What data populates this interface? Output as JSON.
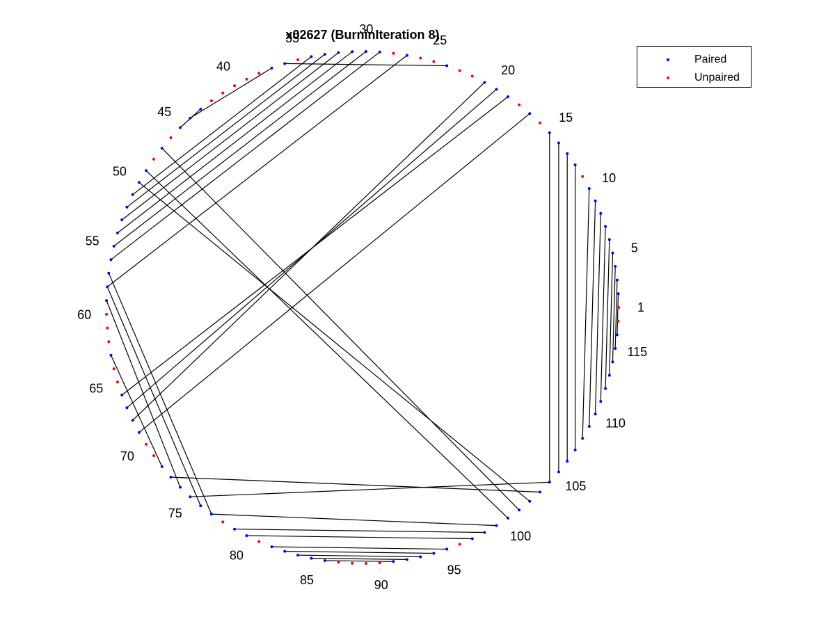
{
  "chart_data": {
    "type": "arc-diagram-circular",
    "title": "x02627 (BurninIteration 8)",
    "n_positions": 117,
    "tick_labels": [
      "1",
      "5",
      "10",
      "15",
      "20",
      "25",
      "30",
      "35",
      "40",
      "45",
      "50",
      "55",
      "60",
      "65",
      "70",
      "75",
      "80",
      "85",
      "90",
      "95",
      "100",
      "105",
      "110",
      "115"
    ],
    "tick_positions": [
      1,
      5,
      10,
      15,
      20,
      25,
      30,
      35,
      40,
      45,
      50,
      55,
      60,
      65,
      70,
      75,
      80,
      85,
      90,
      95,
      100,
      105,
      110,
      115
    ],
    "legend": [
      {
        "name": "Paired",
        "color": "#0000ff"
      },
      {
        "name": "Unpaired",
        "color": "#ff0000"
      }
    ],
    "pairs": [
      [
        2,
        116
      ],
      [
        3,
        115
      ],
      [
        4,
        114
      ],
      [
        5,
        113
      ],
      [
        6,
        112
      ],
      [
        7,
        111
      ],
      [
        8,
        110
      ],
      [
        9,
        109
      ],
      [
        10,
        108
      ],
      [
        12,
        107
      ],
      [
        13,
        106
      ],
      [
        14,
        105
      ],
      [
        15,
        104
      ],
      [
        17,
        69
      ],
      [
        19,
        66
      ],
      [
        20,
        67
      ],
      [
        21,
        68
      ],
      [
        24,
        36
      ],
      [
        27,
        58
      ],
      [
        29,
        56
      ],
      [
        30,
        55
      ],
      [
        31,
        54
      ],
      [
        32,
        53
      ],
      [
        33,
        52
      ],
      [
        34,
        51
      ],
      [
        37,
        44
      ],
      [
        43,
        45
      ],
      [
        47,
        101
      ],
      [
        49,
        100
      ],
      [
        50,
        102
      ],
      [
        63,
        72
      ],
      [
        73,
        103
      ],
      [
        57,
        77
      ],
      [
        58,
        76
      ],
      [
        59,
        74
      ],
      [
        75,
        104
      ],
      [
        77,
        99
      ],
      [
        79,
        98
      ],
      [
        80,
        97
      ],
      [
        82,
        95
      ],
      [
        83,
        94
      ],
      [
        84,
        93
      ],
      [
        85,
        92
      ],
      [
        86,
        91
      ]
    ],
    "unpaired": [
      1,
      11,
      16,
      18,
      22,
      23,
      25,
      26,
      28,
      35,
      38,
      39,
      40,
      41,
      42,
      46,
      48,
      60,
      61,
      62,
      64,
      65,
      71,
      72,
      78,
      79,
      87,
      88,
      89,
      90,
      96,
      97,
      98,
      117
    ]
  }
}
